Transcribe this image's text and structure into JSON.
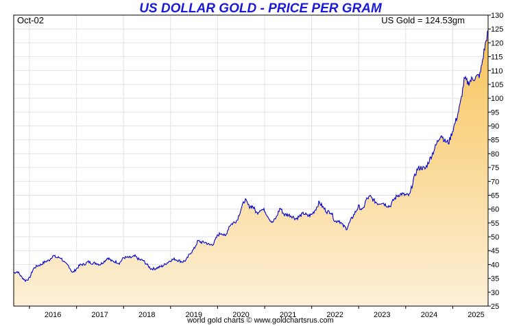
{
  "page": {
    "title": "US DOLLAR GOLD - PRICE PER GRAM",
    "corner_left": "Oct-02",
    "corner_right": "US Gold = 124.53gm",
    "footer": "world gold charts © www.goldchartsrus.com"
  },
  "chart_data": {
    "type": "area",
    "title": "US DOLLAR GOLD - PRICE PER GRAM",
    "xlabel": "",
    "ylabel": "",
    "x_tick_labels": [
      "2016",
      "2017",
      "2018",
      "2019",
      "2020",
      "2021",
      "2022",
      "2023",
      "2024",
      "2025"
    ],
    "y_tick_labels": [
      "25",
      "30",
      "35",
      "40",
      "45",
      "50",
      "55",
      "60",
      "65",
      "70",
      "75",
      "80",
      "85",
      "90",
      "95",
      "100",
      "105",
      "110",
      "115",
      "120",
      "125",
      "130"
    ],
    "ylim": [
      25,
      130
    ],
    "xlim": [
      "2015-09-01",
      "2025-10-02"
    ],
    "y_axis_side": "right",
    "grid": true,
    "line_color": "#0000d0",
    "fill_color_top": "#f8c45a",
    "fill_color_bottom": "#fdf0d8",
    "series": [
      {
        "values": [
          [
            "2015-09-01",
            37.0
          ],
          [
            "2015-10-01",
            37.5
          ],
          [
            "2015-11-01",
            35.5
          ],
          [
            "2015-12-01",
            34.2
          ],
          [
            "2016-01-01",
            35.0
          ],
          [
            "2016-02-01",
            38.5
          ],
          [
            "2016-03-01",
            39.5
          ],
          [
            "2016-04-01",
            40.0
          ],
          [
            "2016-05-01",
            41.0
          ],
          [
            "2016-06-01",
            41.5
          ],
          [
            "2016-07-01",
            43.2
          ],
          [
            "2016-08-01",
            42.5
          ],
          [
            "2016-09-01",
            42.5
          ],
          [
            "2016-10-01",
            40.5
          ],
          [
            "2016-11-01",
            39.5
          ],
          [
            "2016-12-01",
            37.0
          ],
          [
            "2017-01-01",
            38.5
          ],
          [
            "2017-02-01",
            40.0
          ],
          [
            "2017-03-01",
            40.0
          ],
          [
            "2017-04-01",
            41.0
          ],
          [
            "2017-05-01",
            40.5
          ],
          [
            "2017-06-01",
            40.5
          ],
          [
            "2017-07-01",
            40.0
          ],
          [
            "2017-08-01",
            41.0
          ],
          [
            "2017-09-01",
            42.5
          ],
          [
            "2017-10-01",
            41.2
          ],
          [
            "2017-11-01",
            41.0
          ],
          [
            "2017-12-01",
            40.5
          ],
          [
            "2018-01-01",
            42.5
          ],
          [
            "2018-02-01",
            42.5
          ],
          [
            "2018-03-01",
            42.5
          ],
          [
            "2018-04-01",
            43.0
          ],
          [
            "2018-05-01",
            41.8
          ],
          [
            "2018-06-01",
            41.5
          ],
          [
            "2018-07-01",
            40.0
          ],
          [
            "2018-08-01",
            38.5
          ],
          [
            "2018-09-01",
            38.5
          ],
          [
            "2018-10-01",
            39.0
          ],
          [
            "2018-11-01",
            39.5
          ],
          [
            "2018-12-01",
            40.5
          ],
          [
            "2019-01-01",
            41.5
          ],
          [
            "2019-02-01",
            42.0
          ],
          [
            "2019-03-01",
            41.5
          ],
          [
            "2019-04-01",
            41.0
          ],
          [
            "2019-05-01",
            41.5
          ],
          [
            "2019-06-01",
            44.0
          ],
          [
            "2019-07-01",
            45.5
          ],
          [
            "2019-08-01",
            48.5
          ],
          [
            "2019-09-01",
            48.0
          ],
          [
            "2019-10-01",
            48.0
          ],
          [
            "2019-11-01",
            47.0
          ],
          [
            "2019-12-01",
            47.5
          ],
          [
            "2020-01-01",
            50.5
          ],
          [
            "2020-02-01",
            51.5
          ],
          [
            "2020-03-01",
            50.0
          ],
          [
            "2020-04-01",
            54.0
          ],
          [
            "2020-05-01",
            55.0
          ],
          [
            "2020-06-01",
            56.0
          ],
          [
            "2020-07-01",
            60.0
          ],
          [
            "2020-08-01",
            63.5
          ],
          [
            "2020-09-01",
            61.0
          ],
          [
            "2020-10-01",
            61.0
          ],
          [
            "2020-11-01",
            58.5
          ],
          [
            "2020-12-01",
            60.0
          ],
          [
            "2021-01-01",
            59.5
          ],
          [
            "2021-02-01",
            57.0
          ],
          [
            "2021-03-01",
            55.0
          ],
          [
            "2021-04-01",
            57.0
          ],
          [
            "2021-05-01",
            60.5
          ],
          [
            "2021-06-01",
            58.0
          ],
          [
            "2021-07-01",
            58.0
          ],
          [
            "2021-08-01",
            57.5
          ],
          [
            "2021-09-01",
            56.5
          ],
          [
            "2021-10-01",
            57.5
          ],
          [
            "2021-11-01",
            58.5
          ],
          [
            "2021-12-01",
            57.5
          ],
          [
            "2022-01-01",
            58.0
          ],
          [
            "2022-02-01",
            60.0
          ],
          [
            "2022-03-01",
            62.5
          ],
          [
            "2022-04-01",
            60.5
          ],
          [
            "2022-05-01",
            59.0
          ],
          [
            "2022-06-01",
            59.0
          ],
          [
            "2022-07-01",
            55.5
          ],
          [
            "2022-08-01",
            56.0
          ],
          [
            "2022-09-01",
            54.0
          ],
          [
            "2022-10-01",
            53.0
          ],
          [
            "2022-11-01",
            56.0
          ],
          [
            "2022-12-01",
            58.5
          ],
          [
            "2023-01-01",
            61.0
          ],
          [
            "2023-02-01",
            59.5
          ],
          [
            "2023-03-01",
            63.5
          ],
          [
            "2023-04-01",
            64.5
          ],
          [
            "2023-05-01",
            63.0
          ],
          [
            "2023-06-01",
            62.0
          ],
          [
            "2023-07-01",
            62.5
          ],
          [
            "2023-08-01",
            61.5
          ],
          [
            "2023-09-01",
            61.0
          ],
          [
            "2023-10-01",
            63.5
          ],
          [
            "2023-11-01",
            65.0
          ],
          [
            "2023-12-01",
            65.5
          ],
          [
            "2024-01-01",
            65.0
          ],
          [
            "2024-02-01",
            65.0
          ],
          [
            "2024-03-01",
            70.5
          ],
          [
            "2024-04-01",
            74.5
          ],
          [
            "2024-05-01",
            75.0
          ],
          [
            "2024-06-01",
            74.5
          ],
          [
            "2024-07-01",
            77.5
          ],
          [
            "2024-08-01",
            80.5
          ],
          [
            "2024-09-01",
            84.0
          ],
          [
            "2024-10-01",
            87.0
          ],
          [
            "2024-11-01",
            84.5
          ],
          [
            "2024-12-01",
            84.0
          ],
          [
            "2025-01-01",
            88.5
          ],
          [
            "2025-02-01",
            93.0
          ],
          [
            "2025-03-01",
            98.0
          ],
          [
            "2025-04-01",
            107.0
          ],
          [
            "2025-05-01",
            105.5
          ],
          [
            "2025-06-01",
            107.0
          ],
          [
            "2025-07-01",
            107.5
          ],
          [
            "2025-08-01",
            108.5
          ],
          [
            "2025-09-01",
            117.0
          ],
          [
            "2025-10-02",
            124.53
          ]
        ]
      }
    ]
  }
}
